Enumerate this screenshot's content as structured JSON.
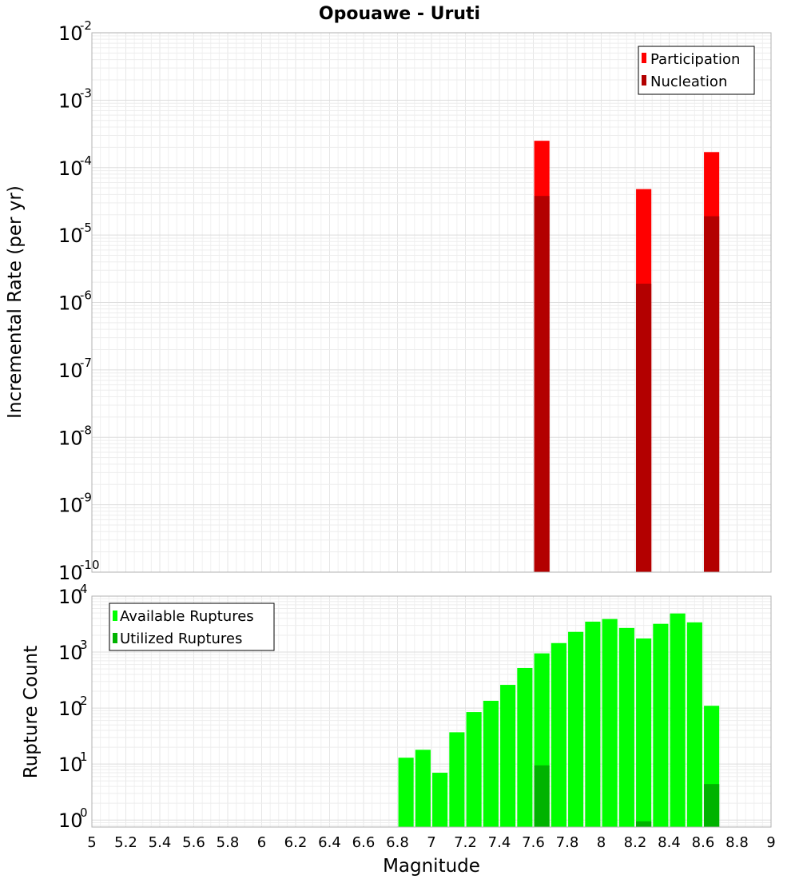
{
  "chart_data": [
    {
      "type": "bar",
      "title": "Opouawe - Uruti",
      "ylabel": "Incremental Rate (per yr)",
      "yscale": "log",
      "ylim": [
        1e-10,
        0.01
      ],
      "xlim": [
        5,
        9
      ],
      "grid": true,
      "legend_position": "top-right",
      "y_ticks": [
        {
          "base": "10",
          "exp": "-10"
        },
        {
          "base": "10",
          "exp": "-9"
        },
        {
          "base": "10",
          "exp": "-8"
        },
        {
          "base": "10",
          "exp": "-7"
        },
        {
          "base": "10",
          "exp": "-6"
        },
        {
          "base": "10",
          "exp": "-5"
        },
        {
          "base": "10",
          "exp": "-4"
        },
        {
          "base": "10",
          "exp": "-3"
        },
        {
          "base": "10",
          "exp": "-2"
        }
      ],
      "x": [
        7.65,
        8.25,
        8.65
      ],
      "series": [
        {
          "name": "Participation",
          "color": "#ff0000",
          "values": [
            0.00025,
            4.8e-05,
            0.00017
          ]
        },
        {
          "name": "Nucleation",
          "color": "#b30000",
          "values": [
            3.8e-05,
            1.9e-06,
            1.9e-05
          ]
        }
      ]
    },
    {
      "type": "bar",
      "ylabel": "Rupture Count",
      "xlabel": "Magnitude",
      "yscale": "log",
      "ylim": [
        0.75,
        10000
      ],
      "xlim": [
        5,
        9
      ],
      "grid": true,
      "legend_position": "top-left",
      "y_ticks": [
        {
          "base": "10",
          "exp": "0"
        },
        {
          "base": "10",
          "exp": "1"
        },
        {
          "base": "10",
          "exp": "2"
        },
        {
          "base": "10",
          "exp": "3"
        },
        {
          "base": "10",
          "exp": "4"
        }
      ],
      "x_ticks": [
        "5",
        "5.2",
        "5.4",
        "5.6",
        "5.8",
        "6",
        "6.2",
        "6.4",
        "6.6",
        "6.8",
        "7",
        "7.2",
        "7.4",
        "7.6",
        "7.8",
        "8",
        "8.2",
        "8.4",
        "8.6",
        "8.8",
        "9"
      ],
      "x": [
        6.85,
        6.95,
        7.05,
        7.15,
        7.25,
        7.35,
        7.45,
        7.55,
        7.65,
        7.75,
        7.85,
        7.95,
        8.05,
        8.15,
        8.25,
        8.35,
        8.45,
        8.55,
        8.65
      ],
      "series": [
        {
          "name": "Available Ruptures",
          "color": "#00ff00",
          "values": [
            13,
            18,
            7,
            37,
            85,
            135,
            260,
            520,
            950,
            1450,
            2300,
            3500,
            3900,
            2700,
            1750,
            3200,
            4900,
            3400,
            110
          ]
        },
        {
          "name": "Utilized Ruptures",
          "color": "#00b300",
          "values": [
            null,
            null,
            null,
            null,
            null,
            null,
            null,
            null,
            9.5,
            null,
            null,
            null,
            null,
            null,
            0.95,
            null,
            null,
            null,
            4.4
          ]
        }
      ]
    }
  ]
}
